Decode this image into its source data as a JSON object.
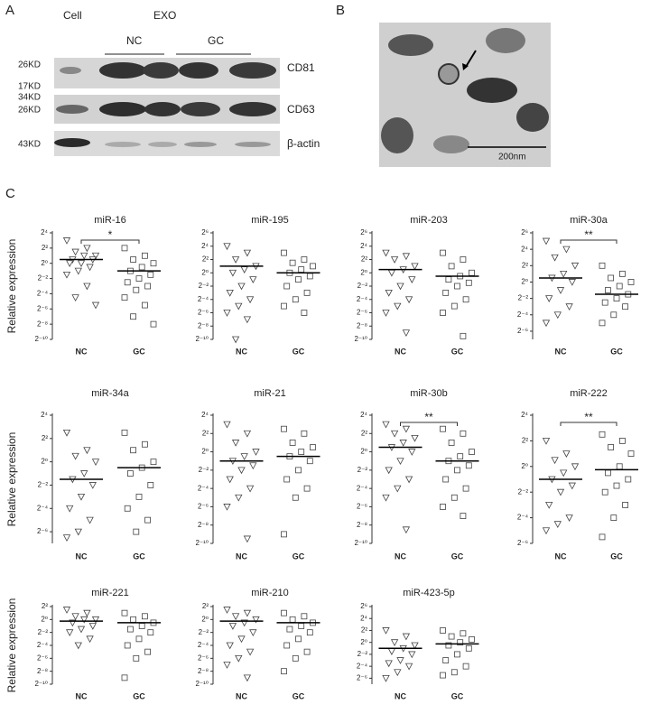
{
  "panel_labels": [
    "A",
    "B",
    "C"
  ],
  "western_blot": {
    "header": {
      "cell": "Cell",
      "exo": "EXO",
      "nc": "NC",
      "gc": "GC"
    },
    "markers": [
      "26KD",
      "17KD",
      "34KD",
      "26KD",
      "43KD"
    ],
    "proteins": [
      "CD81",
      "CD63",
      "β-actin"
    ]
  },
  "tem": {
    "scale_label": "200nm"
  },
  "chart_data": [
    {
      "type": "strip",
      "title": "miR-16",
      "ylabel": "Relative expression",
      "categories": [
        "NC",
        "GC"
      ],
      "markers": [
        "triangle-down",
        "square"
      ],
      "log_base": 2,
      "values": [
        [
          8,
          4,
          2.83,
          2,
          2,
          1.41,
          1.41,
          1,
          1,
          0.707,
          0.5,
          0.354,
          0.125,
          0.0442,
          0.0221
        ],
        [
          4,
          2,
          1.41,
          1,
          0.707,
          0.5,
          0.354,
          0.25,
          0.177,
          0.125,
          0.0884,
          0.0442,
          0.0221,
          0.00781,
          0.00391
        ]
      ],
      "means": [
        1.41,
        0.5
      ],
      "significance": "*",
      "ylim": [
        0.0009765625,
        16
      ],
      "yticks": [
        {
          "value": 16,
          "label": "2⁴"
        },
        {
          "value": 4,
          "label": "2²"
        },
        {
          "value": 1,
          "label": "2⁰"
        },
        {
          "value": 0.25,
          "label": "2⁻²"
        },
        {
          "value": 0.0625,
          "label": "2⁻⁴"
        },
        {
          "value": 0.015625,
          "label": "2⁻⁶"
        },
        {
          "value": 0.00390625,
          "label": "2⁻⁸"
        },
        {
          "value": 0.0009765625,
          "label": "2⁻¹⁰"
        }
      ]
    },
    {
      "type": "strip",
      "title": "miR-195",
      "categories": [
        "NC",
        "GC"
      ],
      "markers": [
        "triangle-down",
        "square"
      ],
      "log_base": 2,
      "values": [
        [
          16,
          8,
          4,
          2,
          1.41,
          1,
          0.5,
          0.25,
          0.125,
          0.0625,
          0.0313,
          0.0156,
          0.00781,
          0.000977
        ],
        [
          8,
          4,
          2.83,
          2,
          1.41,
          1,
          0.707,
          0.5,
          0.25,
          0.125,
          0.0625,
          0.0313,
          0.0156
        ]
      ],
      "means": [
        2,
        1
      ],
      "ylim": [
        0.0009765625,
        64
      ],
      "yticks": [
        {
          "value": 64,
          "label": "2⁶"
        },
        {
          "value": 16,
          "label": "2⁴"
        },
        {
          "value": 4,
          "label": "2²"
        },
        {
          "value": 1,
          "label": "2⁰"
        },
        {
          "value": 0.25,
          "label": "2⁻²"
        },
        {
          "value": 0.0625,
          "label": "2⁻⁴"
        },
        {
          "value": 0.015625,
          "label": "2⁻⁶"
        },
        {
          "value": 0.00390625,
          "label": "2⁻⁸"
        },
        {
          "value": 0.0009765625,
          "label": "2⁻¹⁰"
        }
      ]
    },
    {
      "type": "strip",
      "title": "miR-203",
      "categories": [
        "NC",
        "GC"
      ],
      "markers": [
        "triangle-down",
        "square"
      ],
      "log_base": 2,
      "values": [
        [
          8,
          5.66,
          4,
          2,
          1.41,
          1,
          0.5,
          0.25,
          0.125,
          0.0625,
          0.0313,
          0.0156,
          0.00195
        ],
        [
          8,
          4,
          2,
          1,
          0.707,
          0.5,
          0.354,
          0.25,
          0.125,
          0.0625,
          0.0313,
          0.0156,
          0.00138
        ]
      ],
      "means": [
        1.41,
        0.707
      ],
      "ylim": [
        0.0009765625,
        64
      ],
      "yticks": [
        {
          "value": 64,
          "label": "2⁶"
        },
        {
          "value": 16,
          "label": "2⁴"
        },
        {
          "value": 4,
          "label": "2²"
        },
        {
          "value": 1,
          "label": "2⁰"
        },
        {
          "value": 0.25,
          "label": "2⁻²"
        },
        {
          "value": 0.0625,
          "label": "2⁻⁴"
        },
        {
          "value": 0.015625,
          "label": "2⁻⁶"
        },
        {
          "value": 0.00390625,
          "label": "2⁻⁸"
        },
        {
          "value": 0.0009765625,
          "label": "2⁻¹⁰"
        }
      ]
    },
    {
      "type": "strip",
      "title": "miR-30a",
      "categories": [
        "NC",
        "GC"
      ],
      "markers": [
        "triangle-down",
        "square"
      ],
      "log_base": 2,
      "values": [
        [
          32,
          16,
          8,
          4,
          2,
          1.41,
          1,
          0.5,
          0.25,
          0.125,
          0.0625,
          0.0313
        ],
        [
          4,
          2,
          1.41,
          1,
          0.707,
          0.5,
          0.354,
          0.25,
          0.177,
          0.125,
          0.0625,
          0.0313
        ]
      ],
      "means": [
        1.41,
        0.354
      ],
      "significance": "**",
      "ylim": [
        0.0078125,
        64
      ],
      "yticks": [
        {
          "value": 64,
          "label": "2⁶"
        },
        {
          "value": 16,
          "label": "2⁴"
        },
        {
          "value": 4,
          "label": "2²"
        },
        {
          "value": 1,
          "label": "2⁰"
        },
        {
          "value": 0.25,
          "label": "2⁻²"
        },
        {
          "value": 0.0625,
          "label": "2⁻⁴"
        },
        {
          "value": 0.015625,
          "label": "2⁻⁶"
        }
      ]
    },
    {
      "type": "strip",
      "title": "miR-34a",
      "ylabel": "Relative expression",
      "categories": [
        "NC",
        "GC"
      ],
      "markers": [
        "triangle-down",
        "square"
      ],
      "log_base": 2,
      "values": [
        [
          5.66,
          2,
          1.41,
          1,
          0.5,
          0.354,
          0.25,
          0.125,
          0.0625,
          0.0313,
          0.0156,
          0.011
        ],
        [
          5.66,
          2.83,
          2,
          1,
          0.707,
          0.5,
          0.25,
          0.125,
          0.0625,
          0.0313,
          0.0156
        ]
      ],
      "means": [
        0.354,
        0.707
      ],
      "ylim": [
        0.0078125,
        16
      ],
      "yticks": [
        {
          "value": 16,
          "label": "2⁴"
        },
        {
          "value": 4,
          "label": "2²"
        },
        {
          "value": 1,
          "label": "2⁰"
        },
        {
          "value": 0.25,
          "label": "2⁻²"
        },
        {
          "value": 0.0625,
          "label": "2⁻⁴"
        },
        {
          "value": 0.015625,
          "label": "2⁻⁶"
        }
      ]
    },
    {
      "type": "strip",
      "title": "miR-21",
      "categories": [
        "NC",
        "GC"
      ],
      "markers": [
        "triangle-down",
        "square"
      ],
      "log_base": 2,
      "values": [
        [
          8,
          4,
          2,
          1,
          0.707,
          0.5,
          0.354,
          0.25,
          0.125,
          0.0625,
          0.0313,
          0.0156,
          0.00138
        ],
        [
          5.66,
          4,
          2,
          1.41,
          1,
          0.707,
          0.5,
          0.25,
          0.125,
          0.0625,
          0.0313,
          0.00195
        ]
      ],
      "means": [
        0.5,
        0.707
      ],
      "ylim": [
        0.0009765625,
        16
      ],
      "yticks": [
        {
          "value": 16,
          "label": "2⁴"
        },
        {
          "value": 4,
          "label": "2²"
        },
        {
          "value": 1,
          "label": "2⁰"
        },
        {
          "value": 0.25,
          "label": "2⁻²"
        },
        {
          "value": 0.0625,
          "label": "2⁻⁴"
        },
        {
          "value": 0.015625,
          "label": "2⁻⁶"
        },
        {
          "value": 0.00390625,
          "label": "2⁻⁸"
        },
        {
          "value": 0.0009765625,
          "label": "2⁻¹⁰"
        }
      ]
    },
    {
      "type": "strip",
      "title": "miR-30b",
      "categories": [
        "NC",
        "GC"
      ],
      "markers": [
        "triangle-down",
        "square"
      ],
      "log_base": 2,
      "values": [
        [
          8,
          5.66,
          4,
          2.83,
          2,
          1.41,
          1,
          0.5,
          0.25,
          0.125,
          0.0625,
          0.0313,
          0.00276
        ],
        [
          5.66,
          4,
          2,
          1,
          0.707,
          0.5,
          0.354,
          0.25,
          0.125,
          0.0625,
          0.0313,
          0.0156,
          0.00781
        ]
      ],
      "means": [
        1.41,
        0.5
      ],
      "significance": "**",
      "ylim": [
        0.0009765625,
        16
      ],
      "yticks": [
        {
          "value": 16,
          "label": "2⁴"
        },
        {
          "value": 4,
          "label": "2²"
        },
        {
          "value": 1,
          "label": "2⁰"
        },
        {
          "value": 0.25,
          "label": "2⁻²"
        },
        {
          "value": 0.0625,
          "label": "2⁻⁴"
        },
        {
          "value": 0.015625,
          "label": "2⁻⁶"
        },
        {
          "value": 0.00390625,
          "label": "2⁻⁸"
        },
        {
          "value": 0.0009765625,
          "label": "2⁻¹⁰"
        }
      ]
    },
    {
      "type": "strip",
      "title": "miR-222",
      "categories": [
        "NC",
        "GC"
      ],
      "markers": [
        "triangle-down",
        "square"
      ],
      "log_base": 2,
      "values": [
        [
          4,
          2,
          1.41,
          1,
          0.707,
          0.5,
          0.354,
          0.25,
          0.125,
          0.0625,
          0.0442,
          0.0313
        ],
        [
          5.66,
          4,
          2.83,
          2,
          1,
          0.707,
          0.5,
          0.354,
          0.25,
          0.125,
          0.0625,
          0.0221
        ]
      ],
      "means": [
        0.5,
        0.841
      ],
      "significance": "**",
      "ylim": [
        0.015625,
        16
      ],
      "yticks": [
        {
          "value": 16,
          "label": "2⁴"
        },
        {
          "value": 4,
          "label": "2²"
        },
        {
          "value": 1,
          "label": "2⁰"
        },
        {
          "value": 0.25,
          "label": "2⁻²"
        },
        {
          "value": 0.0625,
          "label": "2⁻⁴"
        },
        {
          "value": 0.015625,
          "label": "2⁻⁶"
        }
      ]
    },
    {
      "type": "strip",
      "title": "miR-221",
      "ylabel": "Relative expression",
      "categories": [
        "NC",
        "GC"
      ],
      "markers": [
        "triangle-down",
        "square"
      ],
      "log_base": 2,
      "values": [
        [
          2.83,
          2,
          1.41,
          1,
          1,
          0.707,
          0.5,
          0.354,
          0.25,
          0.125,
          0.0625
        ],
        [
          2,
          1.41,
          1,
          0.707,
          0.5,
          0.354,
          0.25,
          0.125,
          0.0625,
          0.0313,
          0.0156,
          0.00195
        ]
      ],
      "means": [
        0.841,
        0.707
      ],
      "ylim": [
        0.0009765625,
        4
      ],
      "yticks": [
        {
          "value": 4,
          "label": "2²"
        },
        {
          "value": 1,
          "label": "2⁰"
        },
        {
          "value": 0.25,
          "label": "2⁻²"
        },
        {
          "value": 0.0625,
          "label": "2⁻⁴"
        },
        {
          "value": 0.015625,
          "label": "2⁻⁶"
        },
        {
          "value": 0.00390625,
          "label": "2⁻⁸"
        },
        {
          "value": 0.0009765625,
          "label": "2⁻¹⁰"
        }
      ]
    },
    {
      "type": "strip",
      "title": "miR-210",
      "categories": [
        "NC",
        "GC"
      ],
      "markers": [
        "triangle-down",
        "square"
      ],
      "log_base": 2,
      "values": [
        [
          2.83,
          2,
          1.41,
          1,
          0.707,
          0.5,
          0.25,
          0.125,
          0.0625,
          0.0313,
          0.0156,
          0.00781,
          0.00195
        ],
        [
          2,
          1.41,
          1,
          0.707,
          0.5,
          0.354,
          0.25,
          0.125,
          0.0625,
          0.0313,
          0.0156,
          0.00391
        ]
      ],
      "means": [
        0.841,
        0.707
      ],
      "ylim": [
        0.0009765625,
        4
      ],
      "yticks": [
        {
          "value": 4,
          "label": "2²"
        },
        {
          "value": 1,
          "label": "2⁰"
        },
        {
          "value": 0.25,
          "label": "2⁻²"
        },
        {
          "value": 0.0625,
          "label": "2⁻⁴"
        },
        {
          "value": 0.015625,
          "label": "2⁻⁶"
        },
        {
          "value": 0.00390625,
          "label": "2⁻⁸"
        },
        {
          "value": 0.0009765625,
          "label": "2⁻¹⁰"
        }
      ]
    },
    {
      "type": "strip",
      "title": "miR-423-5p",
      "categories": [
        "NC",
        "GC"
      ],
      "markers": [
        "triangle-down",
        "square"
      ],
      "log_base": 2,
      "values": [
        [
          4,
          2,
          1,
          0.707,
          0.5,
          0.354,
          0.25,
          0.125,
          0.0884,
          0.0625,
          0.0313,
          0.0156
        ],
        [
          4,
          2.83,
          2,
          1.41,
          1,
          0.707,
          0.5,
          0.25,
          0.125,
          0.0625,
          0.0313,
          0.0221
        ]
      ],
      "means": [
        0.5,
        0.841
      ],
      "ylim": [
        0.0078125,
        64
      ],
      "yticks": [
        {
          "value": 64,
          "label": "2⁶"
        },
        {
          "value": 16,
          "label": "2⁴"
        },
        {
          "value": 4,
          "label": "2²"
        },
        {
          "value": 1,
          "label": "2⁰"
        },
        {
          "value": 0.25,
          "label": "2⁻²"
        },
        {
          "value": 0.0625,
          "label": "2⁻⁴"
        },
        {
          "value": 0.015625,
          "label": "2⁻⁶"
        }
      ]
    }
  ]
}
